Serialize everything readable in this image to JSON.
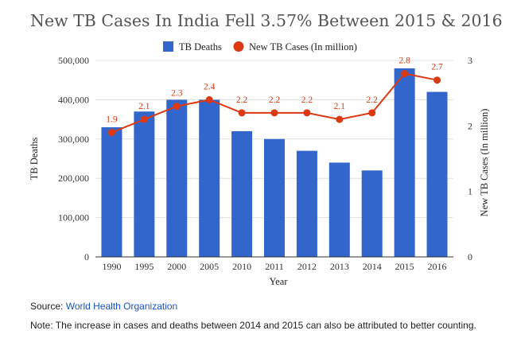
{
  "title": "New TB Cases In India Fell 3.57% Between 2015 & 2016",
  "source": {
    "label": "Source:",
    "link_text": "World Health Organization"
  },
  "note": "Note: The increase in cases and deaths between 2014 and 2015 can also be attributed to better counting.",
  "colors": {
    "bar": "#3366cc",
    "line": "#dc3912",
    "grid": "#e0e0e0",
    "axis": "#333333"
  },
  "chart_data": {
    "type": "bar",
    "categories": [
      "1990",
      "1995",
      "2000",
      "2005",
      "2010",
      "2011",
      "2012",
      "2013",
      "2014",
      "2015",
      "2016"
    ],
    "series": [
      {
        "name": "TB Deaths",
        "type": "bar",
        "axis": "left",
        "values": [
          330000,
          370000,
          400000,
          400000,
          320000,
          300000,
          270000,
          240000,
          220000,
          480000,
          420000
        ]
      },
      {
        "name": "New TB Cases (In million)",
        "type": "line",
        "axis": "right",
        "values": [
          1.9,
          2.1,
          2.3,
          2.4,
          2.2,
          2.2,
          2.2,
          2.1,
          2.2,
          2.8,
          2.7
        ],
        "labels": [
          "1.9",
          "2.1",
          "2.3",
          "2.4",
          "2.2",
          "2.2",
          "2.2",
          "2.1",
          "2.2",
          "2.8",
          "2.7"
        ]
      }
    ],
    "xlabel": "Year",
    "ylabel": "TB Deaths",
    "y2label": "New TB Cases (In million)",
    "ylim": [
      0,
      500000
    ],
    "y2lim": [
      0,
      3
    ],
    "yticks": [
      "0",
      "100,000",
      "200,000",
      "300,000",
      "400,000",
      "500,000"
    ],
    "y2ticks": [
      "0",
      "1",
      "2",
      "3"
    ],
    "legend": "top-center",
    "grid": true
  }
}
